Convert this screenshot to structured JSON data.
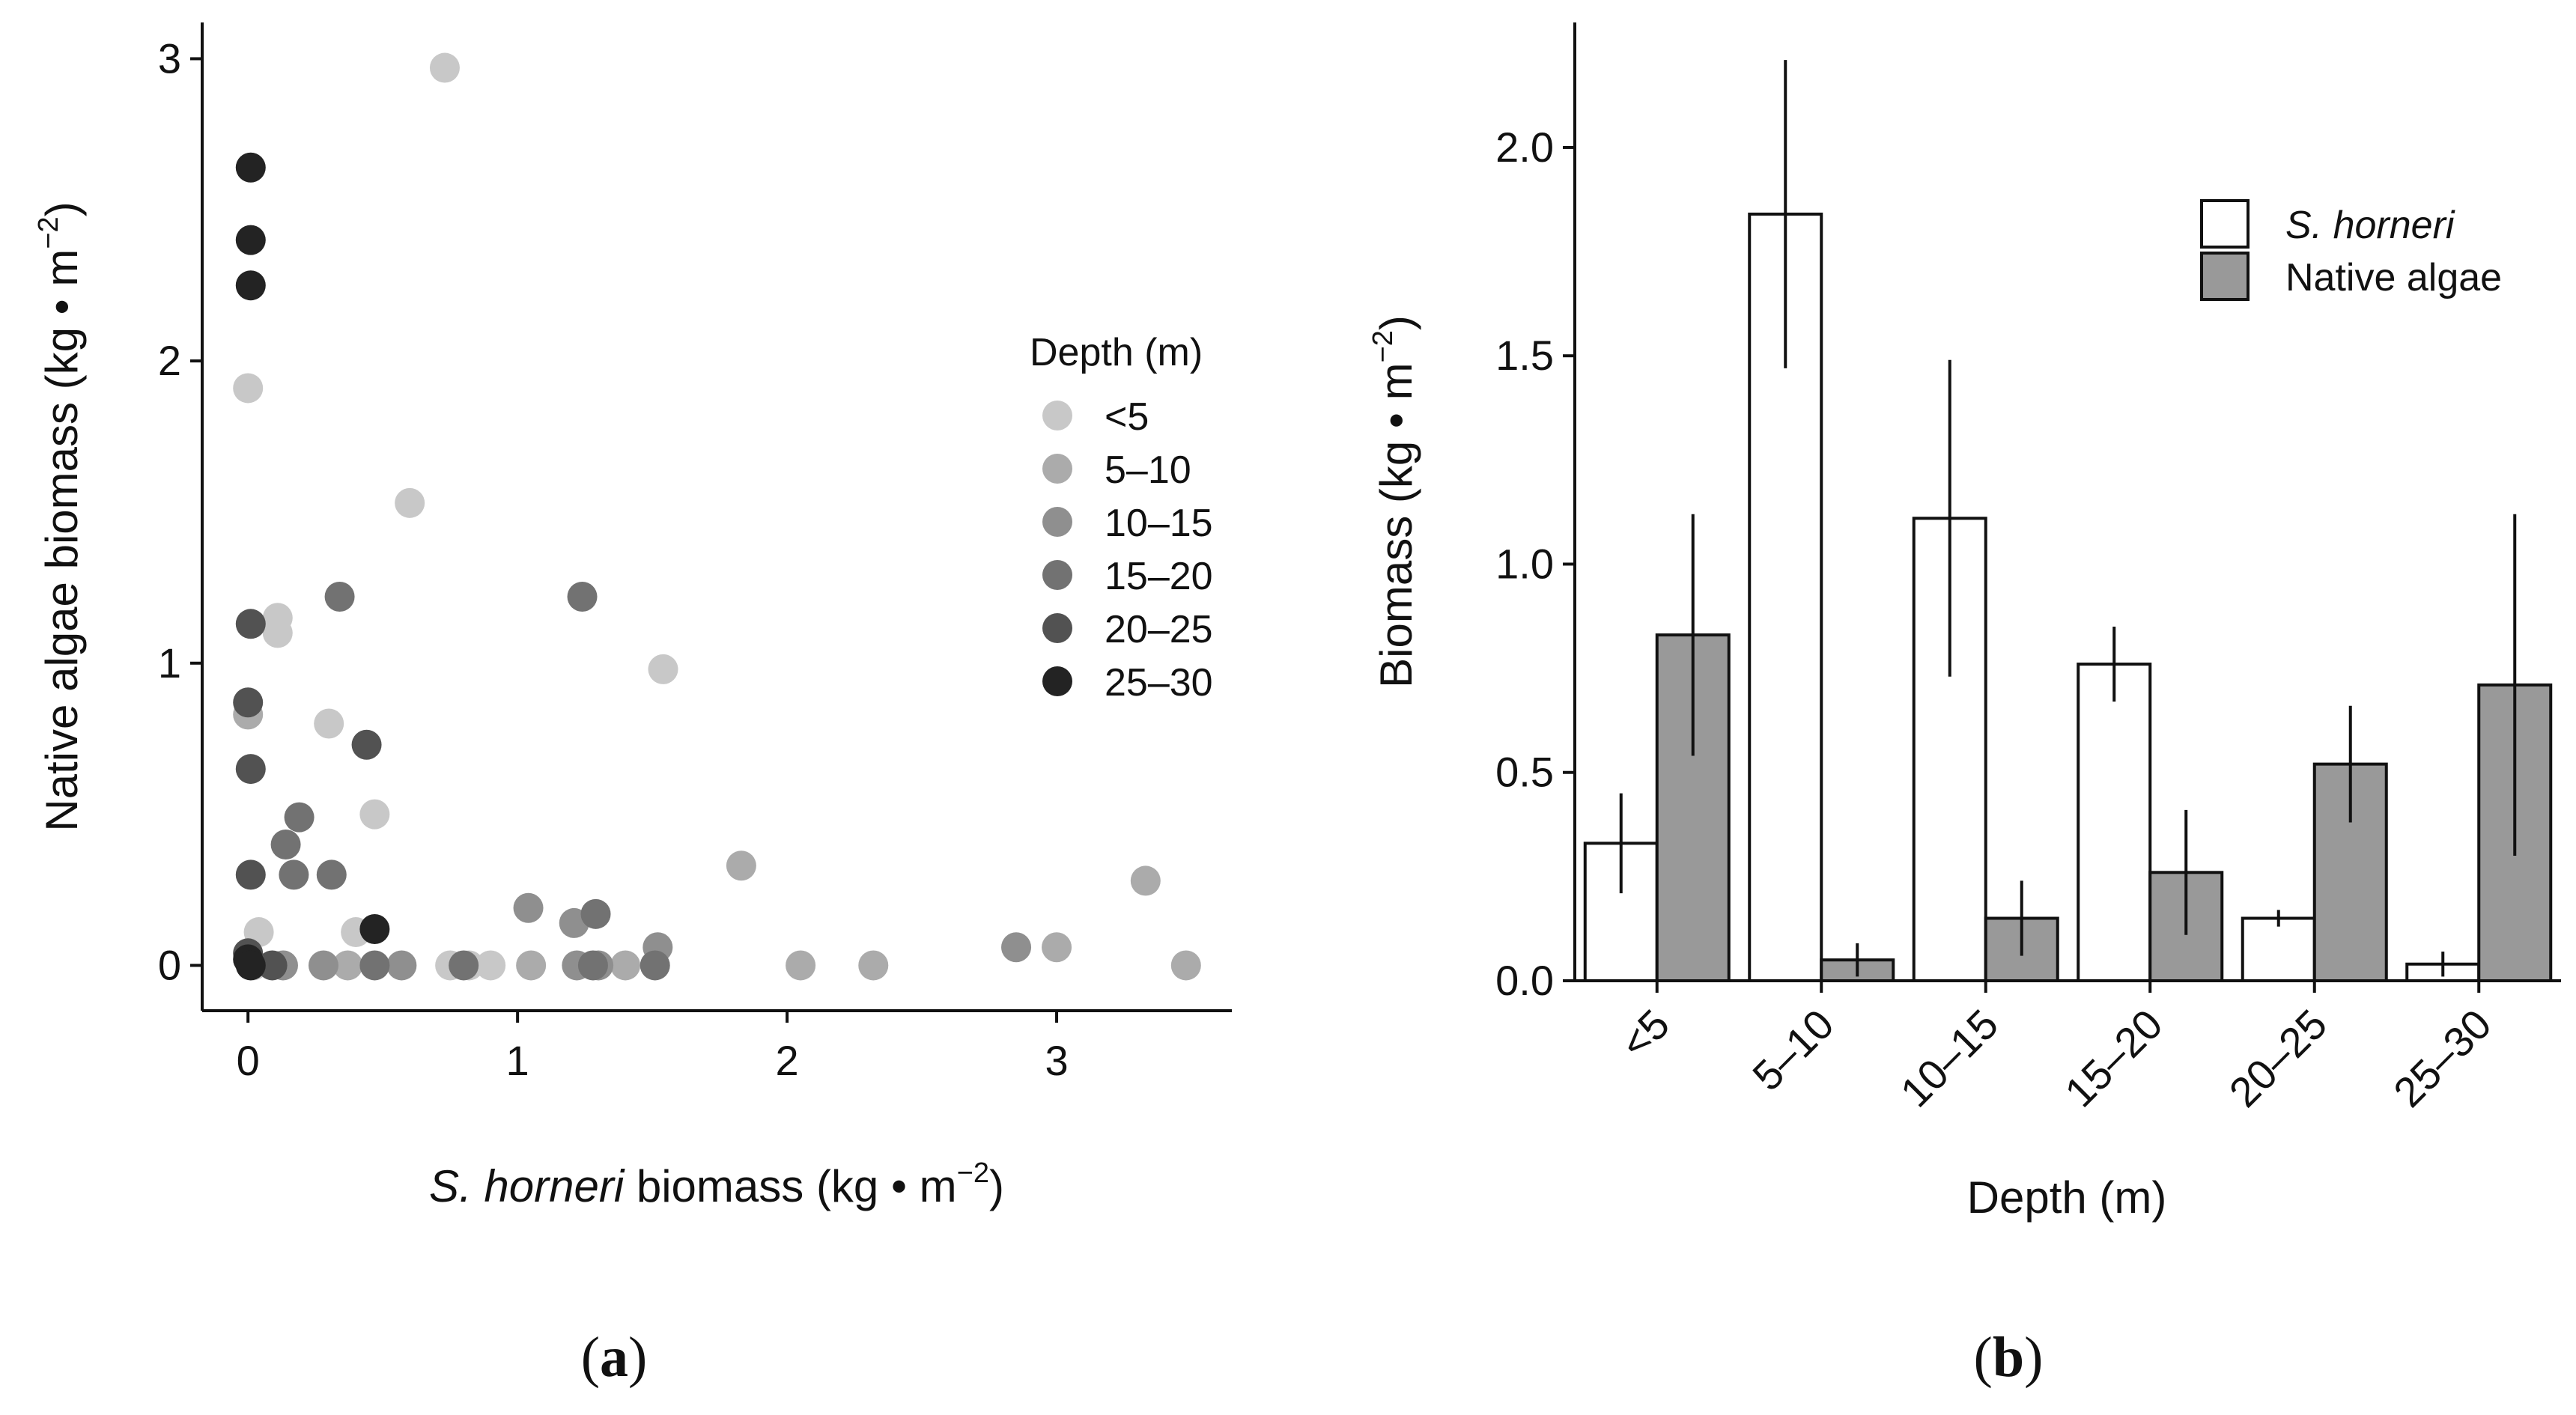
{
  "chart_data": [
    {
      "type": "scatter",
      "panel": "a",
      "caption_label": "a",
      "xlabel_italic": "S. horneri",
      "xlabel_rest": " biomass (kg • m",
      "xlabel_sup": "−2",
      "xlabel_close": ")",
      "ylabel_main": "Native algae biomass (kg • m",
      "ylabel_sup": "−2",
      "ylabel_close": ")",
      "xlim": [
        -0.17,
        3.65
      ],
      "ylim": [
        -0.15,
        3.12
      ],
      "xticks": [
        0,
        1,
        2,
        3
      ],
      "yticks": [
        0,
        1,
        2,
        3
      ],
      "legend": {
        "title": "Depth (m)",
        "placement": "right",
        "entries": [
          {
            "label": "<5",
            "color": "#c8c8c8"
          },
          {
            "label": "5–10",
            "color": "#ababab"
          },
          {
            "label": "10–15",
            "color": "#8f8f8f"
          },
          {
            "label": "15–20",
            "color": "#727272"
          },
          {
            "label": "20–25",
            "color": "#525252"
          },
          {
            "label": "25–30",
            "color": "#232323"
          }
        ]
      },
      "series": [
        {
          "name": "<5",
          "points": [
            [
              0.73,
              2.97
            ],
            [
              0,
              1.91
            ],
            [
              0.6,
              1.53
            ],
            [
              0.11,
              1.15
            ],
            [
              0.11,
              1.1
            ],
            [
              1.54,
              0.98
            ],
            [
              0.3,
              0.8
            ],
            [
              0.47,
              0.5
            ],
            [
              0.04,
              0.11
            ],
            [
              0.4,
              0.11
            ],
            [
              0.02,
              0
            ],
            [
              0.75,
              0
            ],
            [
              0.82,
              0
            ],
            [
              0.9,
              0
            ]
          ]
        },
        {
          "name": "5–10",
          "points": [
            [
              0,
              0.83
            ],
            [
              1.83,
              0.33
            ],
            [
              3.33,
              0.28
            ],
            [
              3,
              0.06
            ],
            [
              0.37,
              0
            ],
            [
              1.05,
              0
            ],
            [
              1.4,
              0
            ],
            [
              2.05,
              0
            ],
            [
              2.32,
              0
            ],
            [
              3.48,
              0
            ]
          ]
        },
        {
          "name": "10–15",
          "points": [
            [
              1.04,
              0.19
            ],
            [
              1.21,
              0.14
            ],
            [
              2.85,
              0.06
            ],
            [
              1.52,
              0.06
            ],
            [
              0.13,
              0
            ],
            [
              0.28,
              0
            ],
            [
              0.57,
              0
            ],
            [
              1.22,
              0
            ],
            [
              1.3,
              0
            ]
          ]
        },
        {
          "name": "15–20",
          "points": [
            [
              0.34,
              1.22
            ],
            [
              1.24,
              1.22
            ],
            [
              0.19,
              0.49
            ],
            [
              0.14,
              0.4
            ],
            [
              0.17,
              0.3
            ],
            [
              0.31,
              0.3
            ],
            [
              1.29,
              0.17
            ],
            [
              0.47,
              0
            ],
            [
              1.28,
              0
            ],
            [
              1.51,
              0
            ],
            [
              0.8,
              0
            ]
          ]
        },
        {
          "name": "20–25",
          "points": [
            [
              0.01,
              1.13
            ],
            [
              0,
              0.87
            ],
            [
              0.01,
              0.65
            ],
            [
              0.01,
              0.3
            ],
            [
              0.44,
              0.73
            ],
            [
              0,
              0.04
            ],
            [
              0.09,
              0
            ]
          ]
        },
        {
          "name": "25–30",
          "points": [
            [
              0.01,
              2.64
            ],
            [
              0.01,
              2.4
            ],
            [
              0.01,
              2.25
            ],
            [
              0.47,
              0.12
            ],
            [
              0,
              0.02
            ],
            [
              0.01,
              0
            ]
          ]
        }
      ]
    },
    {
      "type": "bar",
      "panel": "b",
      "caption_label": "b",
      "xlabel": "Depth (m)",
      "ylabel_main": "Biomass (kg • m",
      "ylabel_sup": "−2",
      "ylabel_close": ")",
      "ylim": [
        0,
        2.3
      ],
      "yticks": [
        "0.0",
        "0.5",
        "1.0",
        "1.5",
        "2.0"
      ],
      "categories": [
        "<5",
        "5–10",
        "10–15",
        "15–20",
        "20–25",
        "25–30"
      ],
      "legend": {
        "placement": "top-right"
      },
      "series": [
        {
          "name": "S. horneri",
          "italic": true,
          "color": "#ffffff",
          "values": [
            0.33,
            1.84,
            1.11,
            0.76,
            0.15,
            0.04
          ],
          "errors": [
            0.12,
            0.37,
            0.38,
            0.09,
            0.02,
            0.03
          ]
        },
        {
          "name": "Native algae",
          "italic": false,
          "color": "#999999",
          "values": [
            0.83,
            0.05,
            0.15,
            0.26,
            0.52,
            0.71
          ],
          "errors": [
            0.29,
            0.04,
            0.09,
            0.15,
            0.14,
            0.41
          ]
        }
      ]
    }
  ]
}
